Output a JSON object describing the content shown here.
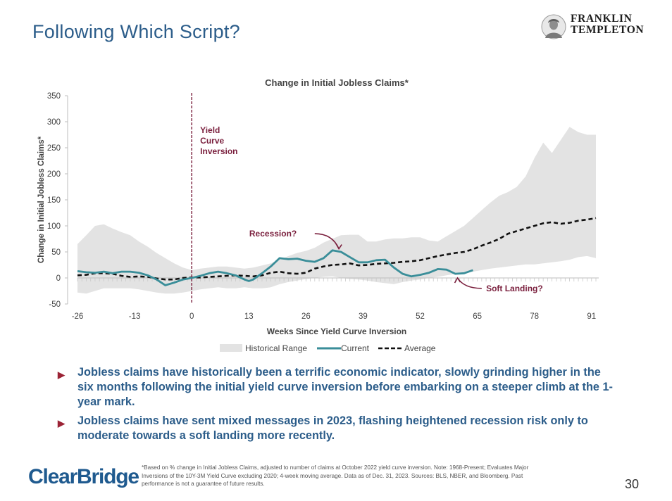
{
  "page": {
    "title": "Following Which Script?",
    "page_number": "30",
    "brand_top": [
      "FRANKLIN",
      "TEMPLETON"
    ],
    "brand_bottom": "ClearBridge",
    "bullets": [
      "Jobless claims have historically been a terrific economic indicator, slowly grinding higher in the six months following the initial yield curve inversion before embarking on a steeper climb at the 1-year mark.",
      "Jobless claims have sent mixed messages in 2023, flashing heightened recession risk only to moderate towards a soft landing more recently."
    ],
    "footnote": "*Based on % change in Initial Jobless Claims, adjusted to number of claims at October 2022 yield curve inversion. Note: 1968-Present; Evaluates Major Inversions of the 10Y-3M Yield Curve excluding 2020; 4-week moving average. Data as of Dec. 31, 2023. Sources: BLS, NBER, and Bloomberg. Past performance is not a guarantee of future results.",
    "colors": {
      "title": "#2c5d8a",
      "accent": "#9b2335",
      "current": "#3a8e99",
      "range": "#e3e3e3"
    }
  },
  "chart_data": {
    "type": "line",
    "title": "Change in Initial Jobless Claims*",
    "xlabel": "Weeks Since Yield Curve Inversion",
    "ylabel": "Change in Initial Jobless Claims*",
    "xlim": [
      -26,
      92
    ],
    "ylim": [
      -50,
      350
    ],
    "xticks": [
      -26,
      -13,
      0,
      13,
      26,
      39,
      52,
      65,
      78,
      91
    ],
    "yticks": [
      -50,
      0,
      50,
      100,
      150,
      200,
      250,
      300,
      350
    ],
    "annotations": [
      {
        "label": "Yield Curve Inversion",
        "lines": [
          "Yield",
          "Curve",
          "Inversion"
        ],
        "x": 0
      },
      {
        "label": "Recession?",
        "x": 28,
        "y": 85
      },
      {
        "label": "Soft Landing?",
        "x": 67,
        "y": -20
      }
    ],
    "legend": [
      "Historical Range",
      "Current",
      "Average"
    ],
    "range_x": [
      -26,
      -24,
      -22,
      -20,
      -18,
      -16,
      -14,
      -12,
      -10,
      -8,
      -6,
      -4,
      -2,
      0,
      2,
      4,
      6,
      8,
      10,
      12,
      14,
      16,
      18,
      20,
      22,
      24,
      26,
      28,
      30,
      32,
      34,
      36,
      38,
      40,
      42,
      44,
      46,
      48,
      50,
      52,
      54,
      56,
      58,
      60,
      62,
      64,
      66,
      68,
      70,
      72,
      74,
      76,
      78,
      80,
      82,
      84,
      86,
      88,
      90,
      92
    ],
    "range_high": [
      65,
      82,
      100,
      103,
      95,
      88,
      82,
      70,
      60,
      48,
      38,
      28,
      20,
      15,
      18,
      20,
      22,
      22,
      20,
      18,
      20,
      24,
      28,
      35,
      42,
      48,
      52,
      58,
      68,
      75,
      82,
      83,
      83,
      70,
      70,
      74,
      76,
      76,
      78,
      78,
      72,
      70,
      80,
      90,
      100,
      115,
      130,
      145,
      158,
      165,
      175,
      195,
      230,
      260,
      240,
      265,
      290,
      280,
      275,
      275
    ],
    "range_low": [
      -28,
      -30,
      -25,
      -20,
      -20,
      -20,
      -20,
      -22,
      -25,
      -28,
      -30,
      -30,
      -28,
      -25,
      -22,
      -20,
      -18,
      -20,
      -20,
      -18,
      -20,
      -20,
      -18,
      -12,
      -8,
      -5,
      -2,
      0,
      2,
      3,
      0,
      -2,
      -3,
      -5,
      -8,
      -10,
      -12,
      -8,
      -5,
      -3,
      0,
      2,
      5,
      8,
      10,
      12,
      15,
      18,
      20,
      22,
      24,
      26,
      26,
      28,
      30,
      32,
      35,
      40,
      42,
      38
    ],
    "series": [
      {
        "name": "Current",
        "x": [
          -26,
          -24,
          -22,
          -20,
          -18,
          -16,
          -14,
          -12,
          -10,
          -8,
          -6,
          -4,
          -2,
          0,
          2,
          4,
          6,
          8,
          10,
          12,
          13,
          14,
          16,
          18,
          20,
          22,
          24,
          26,
          28,
          30,
          32,
          34,
          36,
          38,
          40,
          42,
          44,
          46,
          48,
          50,
          52,
          54,
          56,
          58,
          60,
          62,
          64
        ],
        "y": [
          13,
          11,
          10,
          12,
          9,
          12,
          12,
          10,
          5,
          -3,
          -14,
          -9,
          -3,
          0,
          4,
          9,
          12,
          9,
          5,
          -3,
          -6,
          -3,
          9,
          22,
          38,
          36,
          37,
          33,
          31,
          38,
          53,
          50,
          40,
          30,
          30,
          34,
          35,
          20,
          8,
          3,
          6,
          10,
          17,
          16,
          8,
          9,
          15
        ]
      },
      {
        "name": "Average",
        "x": [
          -26,
          -24,
          -22,
          -20,
          -18,
          -16,
          -14,
          -12,
          -10,
          -8,
          -6,
          -4,
          -2,
          0,
          2,
          4,
          6,
          8,
          10,
          12,
          14,
          16,
          18,
          20,
          22,
          24,
          26,
          28,
          30,
          32,
          34,
          36,
          38,
          40,
          42,
          44,
          46,
          48,
          50,
          52,
          54,
          56,
          58,
          60,
          62,
          64,
          66,
          68,
          70,
          72,
          74,
          76,
          78,
          80,
          82,
          84,
          86,
          88,
          90,
          92
        ],
        "y": [
          5,
          6,
          9,
          9,
          8,
          4,
          2,
          3,
          2,
          -1,
          -3,
          -3,
          0,
          1,
          1,
          2,
          3,
          4,
          5,
          4,
          3,
          5,
          10,
          12,
          9,
          8,
          10,
          18,
          22,
          25,
          26,
          28,
          24,
          25,
          27,
          28,
          29,
          31,
          32,
          34,
          38,
          42,
          45,
          48,
          50,
          55,
          62,
          68,
          75,
          85,
          90,
          95,
          100,
          105,
          107,
          104,
          106,
          110,
          112,
          115
        ]
      }
    ]
  }
}
